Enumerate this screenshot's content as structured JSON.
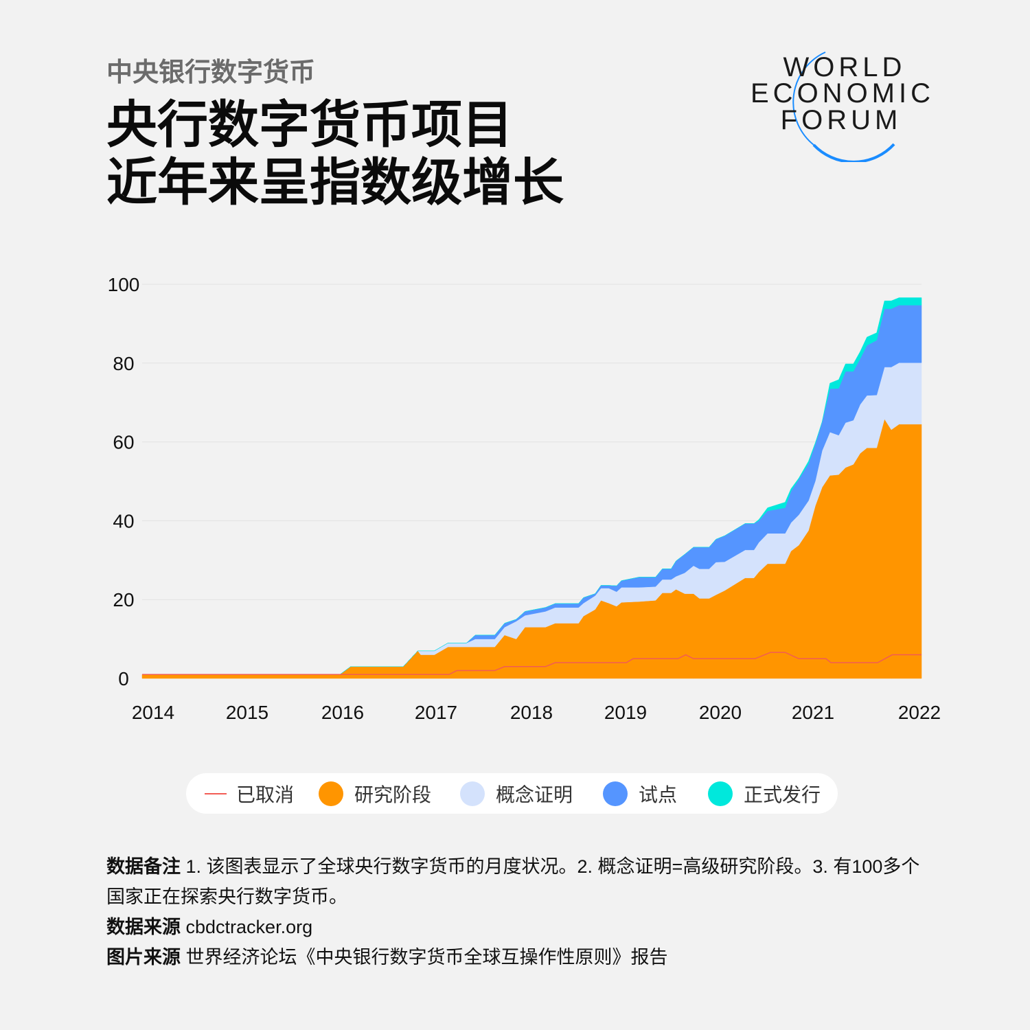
{
  "header": {
    "kicker": "中央银行数字货币",
    "title_line1": "央行数字货币项目",
    "title_line2": "近年来呈指数级增长"
  },
  "logo": {
    "lines": [
      "WORLD",
      "ECONOMIC",
      "FORUM"
    ],
    "arc_color": "#1a8cff"
  },
  "colors": {
    "background": "#f2f2f2",
    "cancelled": "#f25c54",
    "research": "#ff9500",
    "poc": "#d4e2fc",
    "pilot": "#5595ff",
    "launched": "#00e8dc"
  },
  "legend": {
    "cancelled": "已取消",
    "research": "研究阶段",
    "poc": "概念证明",
    "pilot": "试点",
    "launched": "正式发行"
  },
  "notes": {
    "data_notes_label": "数据备注",
    "data_notes_text": "1. 该图表显示了全球央行数字货币的月度状况。2. 概念证明=高级研究阶段。3. 有100多个国家正在探索央行数字货币。",
    "source_label": "数据来源",
    "source_text": "cbdctracker.org",
    "image_source_label": "图片来源",
    "image_source_text": "世界经济论坛《中央银行数字货币全球互操作性原则》报告"
  },
  "chart_data": {
    "type": "area",
    "stacked": true,
    "title": "",
    "xlabel": "",
    "ylabel": "",
    "xlim": [
      2014,
      2022
    ],
    "ylim": [
      0,
      100
    ],
    "grid": true,
    "legend_position": "bottom",
    "x_ticks": [
      "2014",
      "2015",
      "2016",
      "2017",
      "2018",
      "2019",
      "2020",
      "2021",
      "2022"
    ],
    "y_ticks": [
      "0",
      "20",
      "40",
      "60",
      "80",
      "100"
    ],
    "x": [
      2014.0,
      2016.03,
      2016.14,
      2016.68,
      2016.83,
      2016.86,
      2017.0,
      2017.14,
      2017.33,
      2017.42,
      2017.62,
      2017.72,
      2017.84,
      2017.93,
      2018.14,
      2018.24,
      2018.48,
      2018.53,
      2018.65,
      2018.71,
      2018.79,
      2018.87,
      2018.92,
      2019.1,
      2019.27,
      2019.34,
      2019.43,
      2019.48,
      2019.57,
      2019.66,
      2019.72,
      2019.82,
      2019.89,
      2019.98,
      2020.19,
      2020.28,
      2020.33,
      2020.42,
      2020.6,
      2020.66,
      2020.74,
      2020.84,
      2020.91,
      2020.98,
      2021.06,
      2021.15,
      2021.22,
      2021.3,
      2021.37,
      2021.44,
      2021.54,
      2021.62,
      2021.69,
      2021.77,
      2022.0
    ],
    "series": [
      {
        "name": "研究阶段",
        "key": "research",
        "values": [
          1,
          1,
          3,
          3,
          7,
          6,
          6,
          8,
          8,
          8,
          8,
          11,
          10,
          13,
          13,
          14,
          14,
          15.8,
          17.5,
          19.8,
          19.1,
          18.3,
          19.3,
          19.5,
          19.8,
          21.7,
          21.7,
          22.6,
          21.5,
          21.5,
          20.3,
          20.3,
          21.2,
          22.3,
          25.5,
          25.5,
          27,
          29.1,
          29.1,
          32.3,
          33.8,
          37.5,
          43.8,
          48.5,
          51.5,
          51.7,
          53.5,
          54.3,
          57.1,
          58.5,
          58.5,
          65.8,
          63.1,
          64.5,
          64.5
        ]
      },
      {
        "name": "概念证明",
        "key": "poc",
        "values": [
          0,
          0,
          0,
          0,
          0,
          1,
          1,
          1,
          1,
          2,
          2,
          2,
          4.5,
          3,
          4,
          4,
          4,
          3.3,
          3.5,
          3.1,
          3.8,
          3.7,
          3.8,
          3.6,
          3.5,
          3.4,
          3.4,
          3.3,
          5.3,
          7.1,
          7.5,
          7.5,
          8.3,
          7.3,
          7.1,
          7.1,
          7.5,
          7.7,
          7.7,
          7.2,
          7.7,
          7.6,
          6.3,
          9.3,
          11,
          10,
          11.4,
          11.2,
          12.4,
          13.3,
          13.4,
          13.2,
          15.9,
          15.6,
          15.6
        ]
      },
      {
        "name": "试点",
        "key": "pilot",
        "values": [
          0,
          0,
          0,
          0,
          0,
          0,
          0,
          0,
          0,
          1,
          1,
          1,
          0.5,
          1,
          1,
          1,
          1,
          1.4,
          0.5,
          0.7,
          0.7,
          1.5,
          1.7,
          2.6,
          2.4,
          2.7,
          2.7,
          3.9,
          4.7,
          4.7,
          5.5,
          5.5,
          5.8,
          6.6,
          6.7,
          6.7,
          5.5,
          5.7,
          6.5,
          8,
          9,
          9.4,
          9.4,
          7.3,
          11,
          11.9,
          13,
          12.4,
          11.6,
          12.7,
          13.9,
          14.8,
          14.8,
          14.6,
          14.6
        ]
      },
      {
        "name": "正式发行",
        "key": "launched",
        "values": [
          0,
          0,
          0,
          0,
          0,
          0,
          0,
          0,
          0,
          0,
          0,
          0,
          0,
          0,
          0,
          0,
          0,
          0,
          0,
          0,
          0,
          0,
          0,
          0,
          0,
          0,
          0,
          0,
          0,
          0,
          0,
          0,
          0,
          0,
          0,
          0,
          0.3,
          0.8,
          1.4,
          0.6,
          0.3,
          0.6,
          0.3,
          0,
          1.4,
          2.2,
          1.9,
          1.9,
          1.8,
          2.1,
          1.9,
          2,
          2,
          1.9,
          1.9
        ]
      }
    ],
    "line_series": {
      "name": "已取消",
      "key": "cancelled",
      "x": [
        2014.0,
        2017.15,
        2017.23,
        2017.62,
        2017.72,
        2018.14,
        2018.24,
        2018.97,
        2019.04,
        2019.5,
        2019.58,
        2019.66,
        2020.29,
        2020.45,
        2020.6,
        2020.74,
        2021.02,
        2021.07,
        2021.55,
        2021.7,
        2022.0
      ],
      "values": [
        1,
        1,
        2,
        2,
        3,
        3,
        4,
        4,
        5,
        5,
        6,
        5,
        5,
        6.6,
        6.6,
        5,
        5,
        4,
        4,
        6,
        6
      ]
    }
  }
}
